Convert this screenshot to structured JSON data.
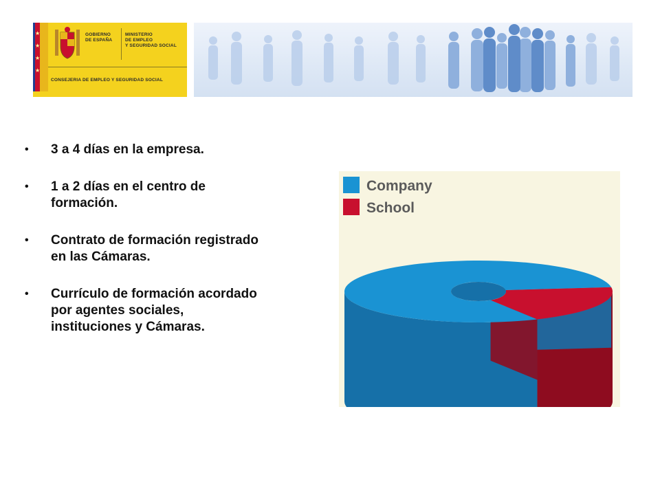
{
  "header": {
    "gov_line1": "GOBIERNO",
    "gov_line2": "DE ESPAÑA",
    "ministry_line1": "MINISTERIO",
    "ministry_line2": "DE EMPLEO",
    "ministry_line3": "Y SEGURIDAD SOCIAL",
    "consejeria": "CONSEJERIA DE EMPLEO Y SEGURIDAD SOCIAL"
  },
  "bullets": [
    "3 a 4 días en la empresa.",
    "1 a 2 días en el centro de formación.",
    "Contrato de formación registrado en las Cámaras.",
    "Currículo de formación acordado por agentes sociales, instituciones y Cámaras."
  ],
  "bullet_glyph": "•",
  "colors": {
    "company": "#1a93d3",
    "company_dark": "#1670a8",
    "school": "#c8102e",
    "school_dark": "#8e0c1f",
    "panel": "#f8f5e1",
    "people": "#8fb0dd"
  },
  "chart_data": {
    "type": "pie",
    "style": "3d-donut",
    "categories": [
      "Company",
      "School"
    ],
    "values": [
      80,
      20
    ],
    "legend": [
      "Company",
      "School"
    ],
    "legend_position": "top-left"
  }
}
